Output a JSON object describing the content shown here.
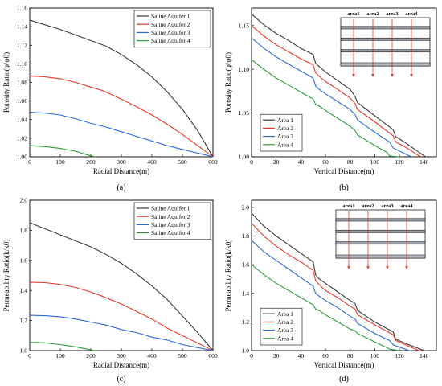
{
  "chart_data": [
    {
      "type": "line",
      "panel": "(a)",
      "xlabel": "Radial Distance(m)",
      "ylabel": "Porosity Ratio(φ/φ0)",
      "xlim": [
        0,
        600
      ],
      "ylim": [
        1.0,
        1.16
      ],
      "xticks": [
        0,
        100,
        200,
        300,
        400,
        500,
        600
      ],
      "yticks": [
        1.0,
        1.02,
        1.04,
        1.06,
        1.08,
        1.1,
        1.12,
        1.14,
        1.16
      ],
      "ytick_decimals": 2,
      "legend_position": "top-right",
      "series": [
        {
          "name": "Saline Aquifer 1",
          "color": "#3a3a3a",
          "x": [
            0,
            50,
            100,
            150,
            200,
            250,
            300,
            350,
            400,
            450,
            500,
            550,
            600
          ],
          "y": [
            1.147,
            1.142,
            1.137,
            1.131,
            1.125,
            1.119,
            1.11,
            1.099,
            1.086,
            1.07,
            1.051,
            1.028,
            1.0
          ]
        },
        {
          "name": "Saline Aquifer 2",
          "color": "#e8392c",
          "x": [
            0,
            50,
            100,
            150,
            200,
            240,
            300,
            350,
            400,
            450,
            500,
            550,
            600
          ],
          "y": [
            1.087,
            1.086,
            1.084,
            1.08,
            1.075,
            1.071,
            1.062,
            1.054,
            1.045,
            1.035,
            1.024,
            1.012,
            1.0
          ]
        },
        {
          "name": "Saline Aquifer 3",
          "color": "#2b6be0",
          "x": [
            0,
            50,
            100,
            150,
            200,
            250,
            300,
            350,
            400,
            450,
            500,
            550,
            600
          ],
          "y": [
            1.048,
            1.047,
            1.045,
            1.041,
            1.036,
            1.032,
            1.027,
            1.022,
            1.017,
            1.012,
            1.008,
            1.004,
            1.0
          ]
        },
        {
          "name": "Saline Aquifer 4",
          "color": "#2a9d3c",
          "x": [
            0,
            50,
            100,
            150,
            200,
            215
          ],
          "y": [
            1.012,
            1.011,
            1.009,
            1.006,
            1.001,
            1.0
          ]
        }
      ]
    },
    {
      "type": "line",
      "panel": "(b)",
      "xlabel": "Vertical Distance(m)",
      "ylabel": "Porosity Ratio(φ/φ0)",
      "xlim": [
        0,
        150
      ],
      "ylim": [
        1.0,
        1.17
      ],
      "xticks": [
        0,
        20,
        40,
        60,
        80,
        100,
        120,
        140
      ],
      "yticks": [
        1.0,
        1.05,
        1.1,
        1.15
      ],
      "ytick_decimals": 2,
      "legend_position": "bottom-left",
      "inset": {
        "labels": [
          "area1",
          "area2",
          "area3",
          "area4"
        ]
      },
      "series": [
        {
          "name": "Area 1",
          "color": "#3a3a3a",
          "x": [
            0,
            10,
            20,
            30,
            40,
            50,
            52,
            55,
            60,
            70,
            80,
            84,
            86,
            100,
            115,
            117,
            125,
            140,
            142
          ],
          "y": [
            1.163,
            1.151,
            1.141,
            1.133,
            1.124,
            1.117,
            1.107,
            1.103,
            1.097,
            1.087,
            1.077,
            1.069,
            1.062,
            1.047,
            1.031,
            1.023,
            1.016,
            1.001,
            1.0
          ]
        },
        {
          "name": "Area 2",
          "color": "#e8392c",
          "x": [
            0,
            10,
            20,
            30,
            40,
            50,
            52,
            55,
            60,
            70,
            80,
            84,
            86,
            100,
            115,
            117,
            125,
            136,
            138
          ],
          "y": [
            1.15,
            1.138,
            1.128,
            1.12,
            1.112,
            1.105,
            1.096,
            1.092,
            1.086,
            1.077,
            1.067,
            1.061,
            1.054,
            1.04,
            1.024,
            1.017,
            1.011,
            1.001,
            1.0
          ]
        },
        {
          "name": "Area 3",
          "color": "#2b6be0",
          "x": [
            0,
            10,
            20,
            30,
            40,
            50,
            52,
            55,
            60,
            70,
            80,
            84,
            86,
            100,
            112,
            115,
            128,
            130
          ],
          "y": [
            1.136,
            1.124,
            1.114,
            1.106,
            1.098,
            1.09,
            1.081,
            1.077,
            1.072,
            1.063,
            1.054,
            1.048,
            1.042,
            1.028,
            1.017,
            1.01,
            1.001,
            1.0
          ]
        },
        {
          "name": "Area 4",
          "color": "#2a9d3c",
          "x": [
            0,
            10,
            20,
            30,
            40,
            50,
            52,
            55,
            60,
            70,
            80,
            84,
            86,
            100,
            110,
            112,
            120
          ],
          "y": [
            1.111,
            1.1,
            1.09,
            1.082,
            1.074,
            1.066,
            1.06,
            1.058,
            1.053,
            1.044,
            1.035,
            1.03,
            1.025,
            1.013,
            1.005,
            1.001,
            1.0
          ]
        }
      ]
    },
    {
      "type": "line",
      "panel": "(c)",
      "xlabel": "Radial Distance(m)",
      "ylabel": "Permeability Ratio(k/k0)",
      "xlim": [
        0,
        600
      ],
      "ylim": [
        1.0,
        2.0
      ],
      "xticks": [
        0,
        100,
        200,
        300,
        400,
        500,
        600
      ],
      "yticks": [
        1.0,
        1.2,
        1.4,
        1.6,
        1.8,
        2.0
      ],
      "ytick_decimals": 1,
      "legend_position": "top-right",
      "series": [
        {
          "name": "Saline Aquifer 1",
          "color": "#3a3a3a",
          "x": [
            0,
            50,
            100,
            150,
            200,
            250,
            300,
            350,
            400,
            450,
            500,
            550,
            600
          ],
          "y": [
            1.85,
            1.81,
            1.77,
            1.73,
            1.69,
            1.64,
            1.58,
            1.51,
            1.43,
            1.34,
            1.23,
            1.12,
            1.0
          ]
        },
        {
          "name": "Saline Aquifer 2",
          "color": "#e8392c",
          "x": [
            0,
            50,
            100,
            150,
            200,
            240,
            300,
            350,
            400,
            450,
            500,
            550,
            600
          ],
          "y": [
            1.455,
            1.452,
            1.44,
            1.42,
            1.39,
            1.36,
            1.31,
            1.26,
            1.21,
            1.15,
            1.1,
            1.05,
            1.0
          ]
        },
        {
          "name": "Saline Aquifer 3",
          "color": "#2b6be0",
          "x": [
            0,
            50,
            100,
            150,
            200,
            250,
            300,
            350,
            400,
            450,
            500,
            550,
            600
          ],
          "y": [
            1.235,
            1.232,
            1.225,
            1.21,
            1.19,
            1.17,
            1.14,
            1.12,
            1.09,
            1.07,
            1.04,
            1.02,
            1.0
          ]
        },
        {
          "name": "Saline Aquifer 4",
          "color": "#2a9d3c",
          "x": [
            0,
            50,
            100,
            150,
            200,
            215
          ],
          "y": [
            1.055,
            1.052,
            1.04,
            1.025,
            1.005,
            1.0
          ]
        }
      ]
    },
    {
      "type": "line",
      "panel": "(d)",
      "xlabel": "Vertical Distance(m)",
      "ylabel": "Permeability Ratio(k/k0)",
      "xlim": [
        0,
        150
      ],
      "ylim": [
        1.0,
        2.05
      ],
      "xticks": [
        0,
        20,
        40,
        60,
        80,
        100,
        120,
        140
      ],
      "yticks": [
        1.0,
        1.2,
        1.4,
        1.6,
        1.8,
        2.0
      ],
      "ytick_decimals": 1,
      "legend_position": "bottom-left",
      "inset": {
        "labels": [
          "area1",
          "area2",
          "area3",
          "area4"
        ]
      },
      "series": [
        {
          "name": "Area 1",
          "color": "#3a3a3a",
          "x": [
            0,
            10,
            20,
            30,
            40,
            50,
            52,
            55,
            60,
            70,
            80,
            84,
            86,
            100,
            115,
            117,
            125,
            140,
            142
          ],
          "y": [
            1.96,
            1.87,
            1.8,
            1.74,
            1.68,
            1.62,
            1.53,
            1.5,
            1.47,
            1.41,
            1.35,
            1.33,
            1.28,
            1.2,
            1.13,
            1.08,
            1.05,
            1.0,
            1.0
          ]
        },
        {
          "name": "Area 2",
          "color": "#e8392c",
          "x": [
            0,
            10,
            20,
            30,
            40,
            50,
            52,
            55,
            60,
            70,
            80,
            84,
            86,
            100,
            115,
            117,
            125,
            136,
            138
          ],
          "y": [
            1.89,
            1.8,
            1.73,
            1.67,
            1.62,
            1.56,
            1.49,
            1.46,
            1.42,
            1.37,
            1.31,
            1.29,
            1.25,
            1.18,
            1.11,
            1.07,
            1.04,
            1.0,
            1.0
          ]
        },
        {
          "name": "Area 3",
          "color": "#2b6be0",
          "x": [
            0,
            10,
            20,
            30,
            40,
            50,
            52,
            55,
            60,
            70,
            80,
            84,
            86,
            100,
            112,
            115,
            128,
            130
          ],
          "y": [
            1.77,
            1.69,
            1.63,
            1.57,
            1.51,
            1.45,
            1.4,
            1.38,
            1.35,
            1.3,
            1.24,
            1.22,
            1.19,
            1.12,
            1.07,
            1.04,
            1.0,
            1.0
          ]
        },
        {
          "name": "Area 4",
          "color": "#2a9d3c",
          "x": [
            0,
            10,
            20,
            30,
            40,
            50,
            52,
            55,
            60,
            70,
            80,
            84,
            86,
            100,
            110,
            112,
            120
          ],
          "y": [
            1.6,
            1.53,
            1.47,
            1.42,
            1.37,
            1.32,
            1.29,
            1.28,
            1.25,
            1.2,
            1.15,
            1.14,
            1.12,
            1.06,
            1.02,
            1.01,
            1.0
          ]
        }
      ]
    }
  ]
}
